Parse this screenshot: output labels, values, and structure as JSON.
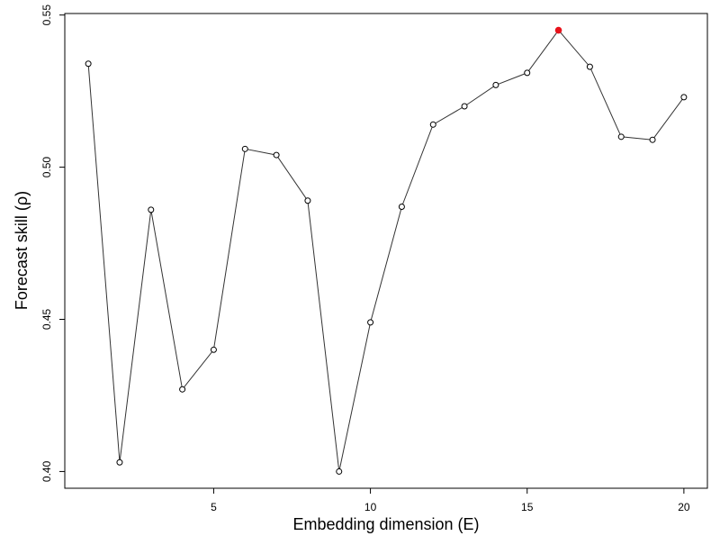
{
  "chart_data": {
    "type": "line",
    "title": "",
    "xlabel": "Embedding dimension (E)",
    "ylabel": "Forecast skill (ρ)",
    "xlim": [
      0.25,
      20.75
    ],
    "ylim": [
      0.3945,
      0.5505
    ],
    "x_ticks": [
      5,
      10,
      15,
      20
    ],
    "x_tick_labels": [
      "5",
      "10",
      "15",
      "20"
    ],
    "y_ticks": [
      0.4,
      0.45,
      0.5,
      0.55
    ],
    "y_tick_labels": [
      "0.40",
      "0.45",
      "0.50",
      "0.55"
    ],
    "grid": false,
    "series": [
      {
        "x": [
          1,
          2,
          3,
          4,
          5,
          6,
          7,
          8,
          9,
          10,
          11,
          12,
          13,
          14,
          15,
          16,
          17,
          18,
          19,
          20
        ],
        "values": [
          0.534,
          0.403,
          0.486,
          0.427,
          0.44,
          0.506,
          0.504,
          0.489,
          0.4,
          0.449,
          0.487,
          0.514,
          0.52,
          0.527,
          0.531,
          0.545,
          0.533,
          0.51,
          0.509,
          0.523
        ]
      }
    ],
    "highlight": {
      "x": 16,
      "value": 0.545,
      "color": "#e8121b"
    },
    "line_color": "#333333",
    "marker_fill": "#ffffff",
    "marker_stroke": "#000000"
  }
}
